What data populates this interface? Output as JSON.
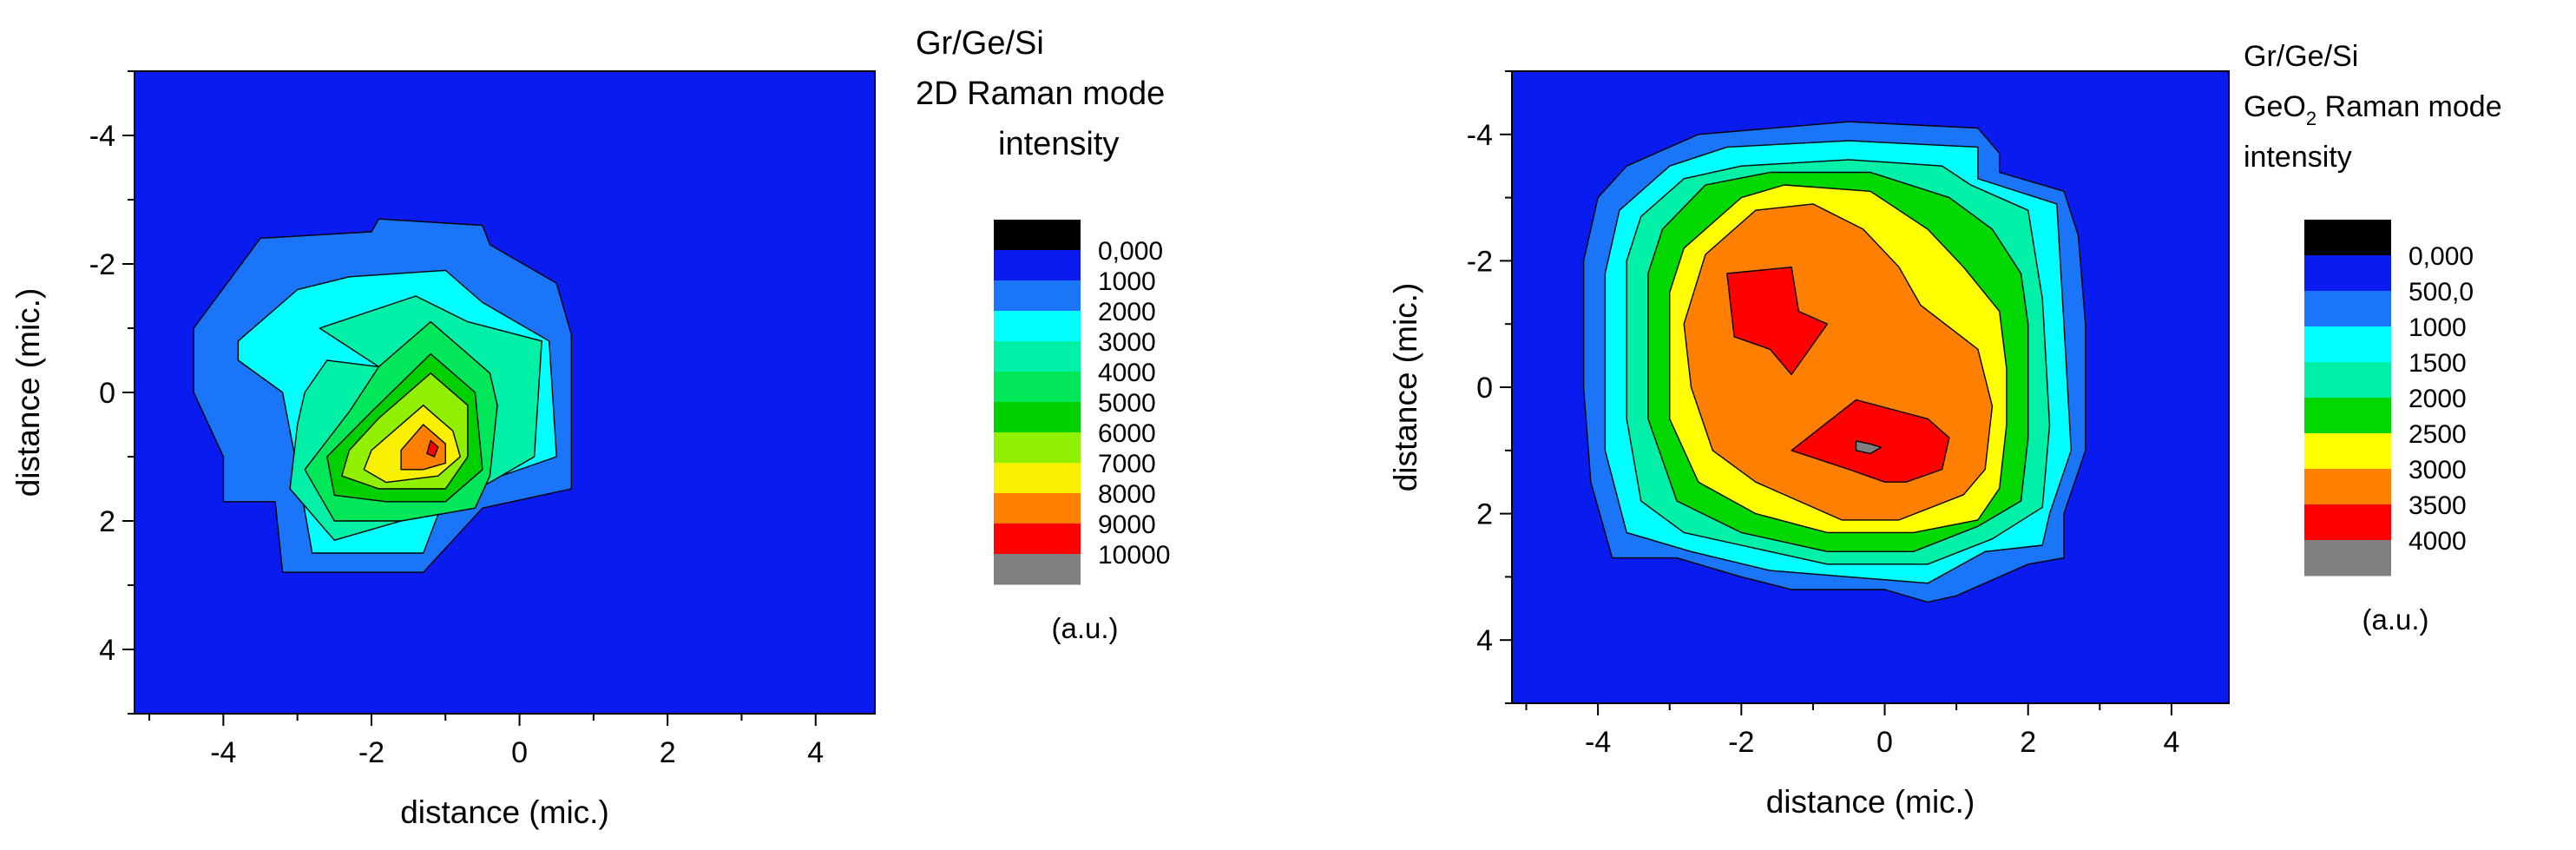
{
  "chart_data": [
    {
      "type": "heatmap",
      "title_lines": [
        "Gr/Ge/Si",
        "2D Raman mode",
        "intensity"
      ],
      "xlabel": "distance (mic.)",
      "ylabel": "distance (mic.)",
      "xlim": [
        -5.2,
        4.8
      ],
      "ylim": [
        -5,
        5
      ],
      "y_inverted": true,
      "x_ticks": [
        "-4",
        "-2",
        "0",
        "2",
        "4"
      ],
      "y_ticks": [
        "-4",
        "-2",
        "0",
        "2",
        "4"
      ],
      "colorbar_unit": "(a.u.)",
      "colorbar_levels": [
        "0,000",
        "1000",
        "2000",
        "3000",
        "4000",
        "5000",
        "6000",
        "7000",
        "8000",
        "9000",
        "10000"
      ],
      "colorbar_colors": [
        "#000000",
        "#0A1BF0",
        "#1A75F8",
        "#00FFFF",
        "#00F0A8",
        "#00E85A",
        "#00D000",
        "#90F000",
        "#F8F000",
        "#FF8000",
        "#FF0000",
        "#808080"
      ],
      "contours": [
        {
          "level": "1000",
          "points": [
            [
              -4.4,
              -1.0
            ],
            [
              -3.5,
              -2.4
            ],
            [
              -2.0,
              -2.5
            ],
            [
              -1.9,
              -2.7
            ],
            [
              -0.5,
              -2.6
            ],
            [
              -0.4,
              -2.3
            ],
            [
              0.5,
              -1.7
            ],
            [
              0.7,
              -0.9
            ],
            [
              0.7,
              -0.4
            ],
            [
              0.7,
              1.0
            ],
            [
              0.7,
              1.5
            ],
            [
              -0.5,
              1.8
            ],
            [
              -1.3,
              2.8
            ],
            [
              -3.2,
              2.8
            ],
            [
              -3.3,
              1.7
            ],
            [
              -4.0,
              1.7
            ],
            [
              -4.0,
              1.0
            ],
            [
              -4.4,
              0.0
            ]
          ]
        },
        {
          "level": "2000",
          "points": [
            [
              -3.8,
              -0.8
            ],
            [
              -3.0,
              -1.6
            ],
            [
              -2.3,
              -1.8
            ],
            [
              -1.0,
              -1.9
            ],
            [
              -0.5,
              -1.4
            ],
            [
              0.4,
              -0.8
            ],
            [
              0.5,
              1.0
            ],
            [
              -1.0,
              1.6
            ],
            [
              -1.3,
              2.5
            ],
            [
              -2.8,
              2.5
            ],
            [
              -3.0,
              1.2
            ],
            [
              -3.2,
              0.0
            ],
            [
              -3.8,
              -0.5
            ]
          ]
        },
        {
          "level": "3000",
          "points": [
            [
              -2.7,
              -1.0
            ],
            [
              -1.4,
              -1.5
            ],
            [
              -0.7,
              -1.1
            ],
            [
              0.3,
              -0.8
            ],
            [
              0.2,
              1.0
            ],
            [
              -1.0,
              1.8
            ],
            [
              -2.5,
              2.3
            ],
            [
              -3.1,
              1.5
            ],
            [
              -3.0,
              0.5
            ],
            [
              -2.9,
              0.0
            ],
            [
              -2.6,
              -0.5
            ],
            [
              -1.9,
              -0.4
            ],
            [
              -2.7,
              -1.0
            ]
          ]
        },
        {
          "level": "4000",
          "points": [
            [
              -1.9,
              -0.4
            ],
            [
              -1.2,
              -1.1
            ],
            [
              -0.4,
              -0.3
            ],
            [
              -0.3,
              0.2
            ],
            [
              -0.4,
              1.3
            ],
            [
              -0.6,
              1.8
            ],
            [
              -1.6,
              2.0
            ],
            [
              -2.5,
              2.0
            ],
            [
              -2.9,
              1.2
            ],
            [
              -2.3,
              0.3
            ]
          ]
        },
        {
          "level": "5000",
          "points": [
            [
              -1.2,
              -0.6
            ],
            [
              -0.6,
              0.0
            ],
            [
              -0.5,
              1.2
            ],
            [
              -1.0,
              1.7
            ],
            [
              -1.8,
              1.7
            ],
            [
              -2.5,
              1.6
            ],
            [
              -2.6,
              1.0
            ],
            [
              -2.0,
              0.3
            ]
          ]
        },
        {
          "level": "6000",
          "points": [
            [
              -1.2,
              -0.3
            ],
            [
              -0.7,
              0.2
            ],
            [
              -0.7,
              1.0
            ],
            [
              -1.0,
              1.5
            ],
            [
              -1.9,
              1.5
            ],
            [
              -2.4,
              1.3
            ],
            [
              -2.3,
              0.9
            ],
            [
              -1.9,
              0.4
            ]
          ]
        },
        {
          "level": "7000",
          "points": [
            [
              -1.3,
              0.2
            ],
            [
              -0.9,
              0.6
            ],
            [
              -0.8,
              1.0
            ],
            [
              -1.1,
              1.3
            ],
            [
              -1.8,
              1.4
            ],
            [
              -2.1,
              1.2
            ],
            [
              -2.0,
              0.9
            ]
          ]
        },
        {
          "level": "8000",
          "points": [
            [
              -1.3,
              0.5
            ],
            [
              -1.0,
              0.8
            ],
            [
              -1.0,
              1.1
            ],
            [
              -1.3,
              1.2
            ],
            [
              -1.6,
              1.2
            ],
            [
              -1.6,
              0.9
            ]
          ]
        },
        {
          "level": "9000",
          "points": [
            [
              -1.2,
              0.75
            ],
            [
              -1.1,
              0.85
            ],
            [
              -1.15,
              1.0
            ],
            [
              -1.25,
              0.95
            ]
          ]
        }
      ]
    },
    {
      "type": "heatmap",
      "title_lines": [
        "Gr/Ge/Si",
        "GeO",
        "2",
        " Raman mode",
        "intensity"
      ],
      "xlabel": "distance (mic.)",
      "ylabel": "distance (mic.)",
      "xlim": [
        -5.2,
        4.8
      ],
      "ylim": [
        -5,
        5
      ],
      "y_inverted": true,
      "x_ticks": [
        "-4",
        "-2",
        "0",
        "2",
        "4"
      ],
      "y_ticks": [
        "-4",
        "-2",
        "0",
        "2",
        "4"
      ],
      "colorbar_unit": "(a.u.)",
      "colorbar_levels": [
        "0,000",
        "500,0",
        "1000",
        "1500",
        "2000",
        "2500",
        "3000",
        "3500",
        "4000"
      ],
      "colorbar_colors": [
        "#000000",
        "#0A1BF0",
        "#1A75F8",
        "#00FFFF",
        "#00F0A8",
        "#00D800",
        "#FFFF00",
        "#FF8000",
        "#FF0000",
        "#808080"
      ],
      "contours": [
        {
          "level": "500,0",
          "points": [
            [
              -4.0,
              -3.0
            ],
            [
              -3.6,
              -3.5
            ],
            [
              -2.6,
              -4.0
            ],
            [
              -0.5,
              -4.2
            ],
            [
              1.3,
              -4.1
            ],
            [
              1.6,
              -3.7
            ],
            [
              1.6,
              -3.4
            ],
            [
              2.5,
              -3.1
            ],
            [
              2.7,
              -2.4
            ],
            [
              2.8,
              -1.0
            ],
            [
              2.8,
              1.0
            ],
            [
              2.5,
              2.0
            ],
            [
              2.5,
              2.7
            ],
            [
              2.0,
              2.8
            ],
            [
              1.0,
              3.3
            ],
            [
              0.6,
              3.4
            ],
            [
              0.0,
              3.2
            ],
            [
              -1.3,
              3.2
            ],
            [
              -2.0,
              3.0
            ],
            [
              -2.9,
              2.7
            ],
            [
              -3.8,
              2.7
            ],
            [
              -4.1,
              1.5
            ],
            [
              -4.2,
              0.0
            ],
            [
              -4.2,
              -2.0
            ]
          ]
        },
        {
          "level": "1000",
          "points": [
            [
              -3.7,
              -2.8
            ],
            [
              -3.0,
              -3.5
            ],
            [
              -2.2,
              -3.8
            ],
            [
              -0.5,
              -3.9
            ],
            [
              1.3,
              -3.8
            ],
            [
              1.3,
              -3.3
            ],
            [
              2.4,
              -2.9
            ],
            [
              2.5,
              -1.0
            ],
            [
              2.6,
              1.0
            ],
            [
              2.3,
              2.0
            ],
            [
              2.2,
              2.5
            ],
            [
              1.4,
              2.6
            ],
            [
              0.6,
              3.1
            ],
            [
              -0.5,
              3.0
            ],
            [
              -1.6,
              2.9
            ],
            [
              -2.7,
              2.6
            ],
            [
              -3.6,
              2.3
            ],
            [
              -3.9,
              1.0
            ],
            [
              -3.9,
              -1.8
            ]
          ]
        },
        {
          "level": "1500",
          "points": [
            [
              -3.4,
              -2.7
            ],
            [
              -2.8,
              -3.3
            ],
            [
              -2.0,
              -3.5
            ],
            [
              -0.5,
              -3.6
            ],
            [
              0.8,
              -3.5
            ],
            [
              1.2,
              -3.2
            ],
            [
              2.0,
              -2.8
            ],
            [
              2.2,
              -1.4
            ],
            [
              2.3,
              0.6
            ],
            [
              2.2,
              1.9
            ],
            [
              1.5,
              2.4
            ],
            [
              0.6,
              2.8
            ],
            [
              -0.8,
              2.8
            ],
            [
              -2.0,
              2.5
            ],
            [
              -2.8,
              2.3
            ],
            [
              -3.4,
              1.8
            ],
            [
              -3.6,
              0.5
            ],
            [
              -3.6,
              -2.0
            ]
          ]
        },
        {
          "level": "2000",
          "points": [
            [
              -3.1,
              -2.5
            ],
            [
              -2.5,
              -3.2
            ],
            [
              -1.6,
              -3.4
            ],
            [
              -0.2,
              -3.4
            ],
            [
              0.9,
              -3.0
            ],
            [
              1.5,
              -2.5
            ],
            [
              1.9,
              -1.8
            ],
            [
              2.0,
              -1.0
            ],
            [
              2.0,
              0.8
            ],
            [
              1.9,
              1.8
            ],
            [
              1.3,
              2.2
            ],
            [
              0.4,
              2.6
            ],
            [
              -0.8,
              2.6
            ],
            [
              -2.0,
              2.3
            ],
            [
              -2.9,
              1.8
            ],
            [
              -3.3,
              0.5
            ],
            [
              -3.3,
              -1.8
            ]
          ]
        },
        {
          "level": "2500",
          "points": [
            [
              -2.8,
              -2.2
            ],
            [
              -2.0,
              -3.0
            ],
            [
              -1.4,
              -3.2
            ],
            [
              -0.2,
              -3.1
            ],
            [
              0.6,
              -2.5
            ],
            [
              1.1,
              -1.9
            ],
            [
              1.6,
              -1.2
            ],
            [
              1.7,
              -0.3
            ],
            [
              1.7,
              0.6
            ],
            [
              1.6,
              1.6
            ],
            [
              1.3,
              2.1
            ],
            [
              0.4,
              2.3
            ],
            [
              -0.8,
              2.3
            ],
            [
              -1.8,
              2.0
            ],
            [
              -2.6,
              1.5
            ],
            [
              -3.0,
              0.5
            ],
            [
              -3.0,
              -1.5
            ]
          ]
        },
        {
          "level": "3000",
          "points": [
            [
              -2.5,
              -2.1
            ],
            [
              -1.8,
              -2.8
            ],
            [
              -1.0,
              -2.9
            ],
            [
              -0.3,
              -2.5
            ],
            [
              0.2,
              -1.9
            ],
            [
              0.5,
              -1.3
            ],
            [
              1.3,
              -0.6
            ],
            [
              1.5,
              0.3
            ],
            [
              1.4,
              1.3
            ],
            [
              1.1,
              1.7
            ],
            [
              0.2,
              2.1
            ],
            [
              -0.6,
              2.1
            ],
            [
              -1.8,
              1.5
            ],
            [
              -2.4,
              1.0
            ],
            [
              -2.7,
              0.0
            ],
            [
              -2.8,
              -1.0
            ]
          ]
        },
        {
          "level": "3500",
          "points": [
            [
              -2.2,
              -1.8
            ],
            [
              -1.3,
              -1.9
            ],
            [
              -1.2,
              -1.2
            ],
            [
              -0.8,
              -1.0
            ],
            [
              -1.3,
              -0.2
            ],
            [
              -1.6,
              -0.6
            ],
            [
              -2.1,
              -0.8
            ]
          ]
        },
        {
          "level": "3500",
          "points": [
            [
              -1.3,
              1.0
            ],
            [
              -0.4,
              0.2
            ],
            [
              0.6,
              0.5
            ],
            [
              0.9,
              0.8
            ],
            [
              0.8,
              1.3
            ],
            [
              0.3,
              1.5
            ],
            [
              0.0,
              1.5
            ],
            [
              -0.5,
              1.3
            ]
          ]
        },
        {
          "level": "4000",
          "points": [
            [
              -0.4,
              0.85
            ],
            [
              -0.2,
              0.9
            ],
            [
              -0.05,
              0.95
            ],
            [
              -0.2,
              1.05
            ],
            [
              -0.4,
              1.0
            ]
          ]
        }
      ]
    }
  ]
}
